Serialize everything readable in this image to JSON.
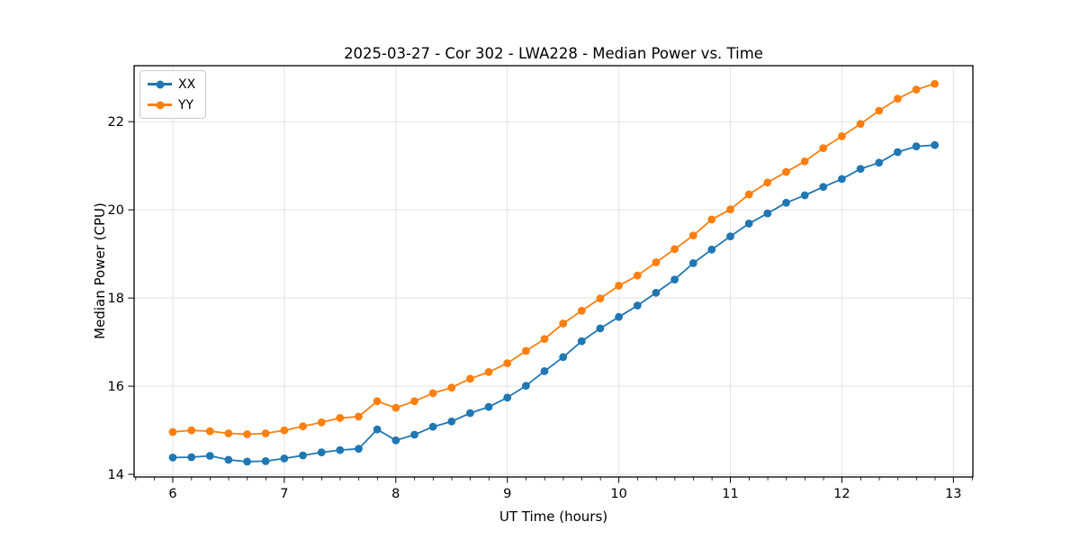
{
  "chart_data": {
    "type": "line",
    "title": "2025-03-27 - Cor 302 - LWA228 - Median Power vs. Time",
    "xlabel": "UT Time (hours)",
    "ylabel": "Median Power (CPU)",
    "xlim": [
      5.653,
      13.175
    ],
    "ylim": [
      13.94,
      23.27
    ],
    "x_ticks": [
      6,
      7,
      8,
      9,
      10,
      11,
      12,
      13
    ],
    "y_ticks": [
      14,
      16,
      18,
      20,
      22
    ],
    "x_minor_tick_interval": 0.1667,
    "grid": "major",
    "grid_color": "#e3e3e3",
    "legend": {
      "position": "upper-left",
      "entries": [
        "XX",
        "YY"
      ]
    },
    "x": [
      6.0,
      6.167,
      6.333,
      6.5,
      6.667,
      6.833,
      7.0,
      7.167,
      7.333,
      7.5,
      7.667,
      7.833,
      8.0,
      8.167,
      8.333,
      8.5,
      8.667,
      8.833,
      9.0,
      9.167,
      9.333,
      9.5,
      9.667,
      9.833,
      10.0,
      10.167,
      10.333,
      10.5,
      10.667,
      10.833,
      11.0,
      11.167,
      11.333,
      11.5,
      11.667,
      11.833,
      12.0,
      12.167,
      12.333,
      12.5,
      12.667,
      12.833
    ],
    "series": [
      {
        "name": "XX",
        "color": "#1f77b4",
        "values": [
          14.38,
          14.39,
          14.42,
          14.33,
          14.29,
          14.3,
          14.36,
          14.43,
          14.5,
          14.55,
          14.58,
          15.02,
          14.77,
          14.9,
          15.08,
          15.2,
          15.39,
          15.53,
          15.74,
          16.01,
          16.34,
          16.66,
          17.02,
          17.31,
          17.57,
          17.83,
          18.12,
          18.42,
          18.79,
          19.1,
          19.4,
          19.69,
          19.92,
          20.16,
          20.33,
          20.52,
          20.7,
          20.93,
          21.07,
          21.31,
          21.44,
          21.47
        ]
      },
      {
        "name": "YY",
        "color": "#ff7f0e",
        "values": [
          14.96,
          15.0,
          14.98,
          14.93,
          14.91,
          14.93,
          15.0,
          15.09,
          15.18,
          15.28,
          15.31,
          15.66,
          15.51,
          15.66,
          15.84,
          15.97,
          16.17,
          16.32,
          16.52,
          16.8,
          17.07,
          17.42,
          17.71,
          17.99,
          18.28,
          18.51,
          18.81,
          19.11,
          19.42,
          19.78,
          20.01,
          20.35,
          20.62,
          20.86,
          21.1,
          21.4,
          21.67,
          21.95,
          22.25,
          22.52,
          22.73,
          22.86
        ]
      }
    ]
  }
}
